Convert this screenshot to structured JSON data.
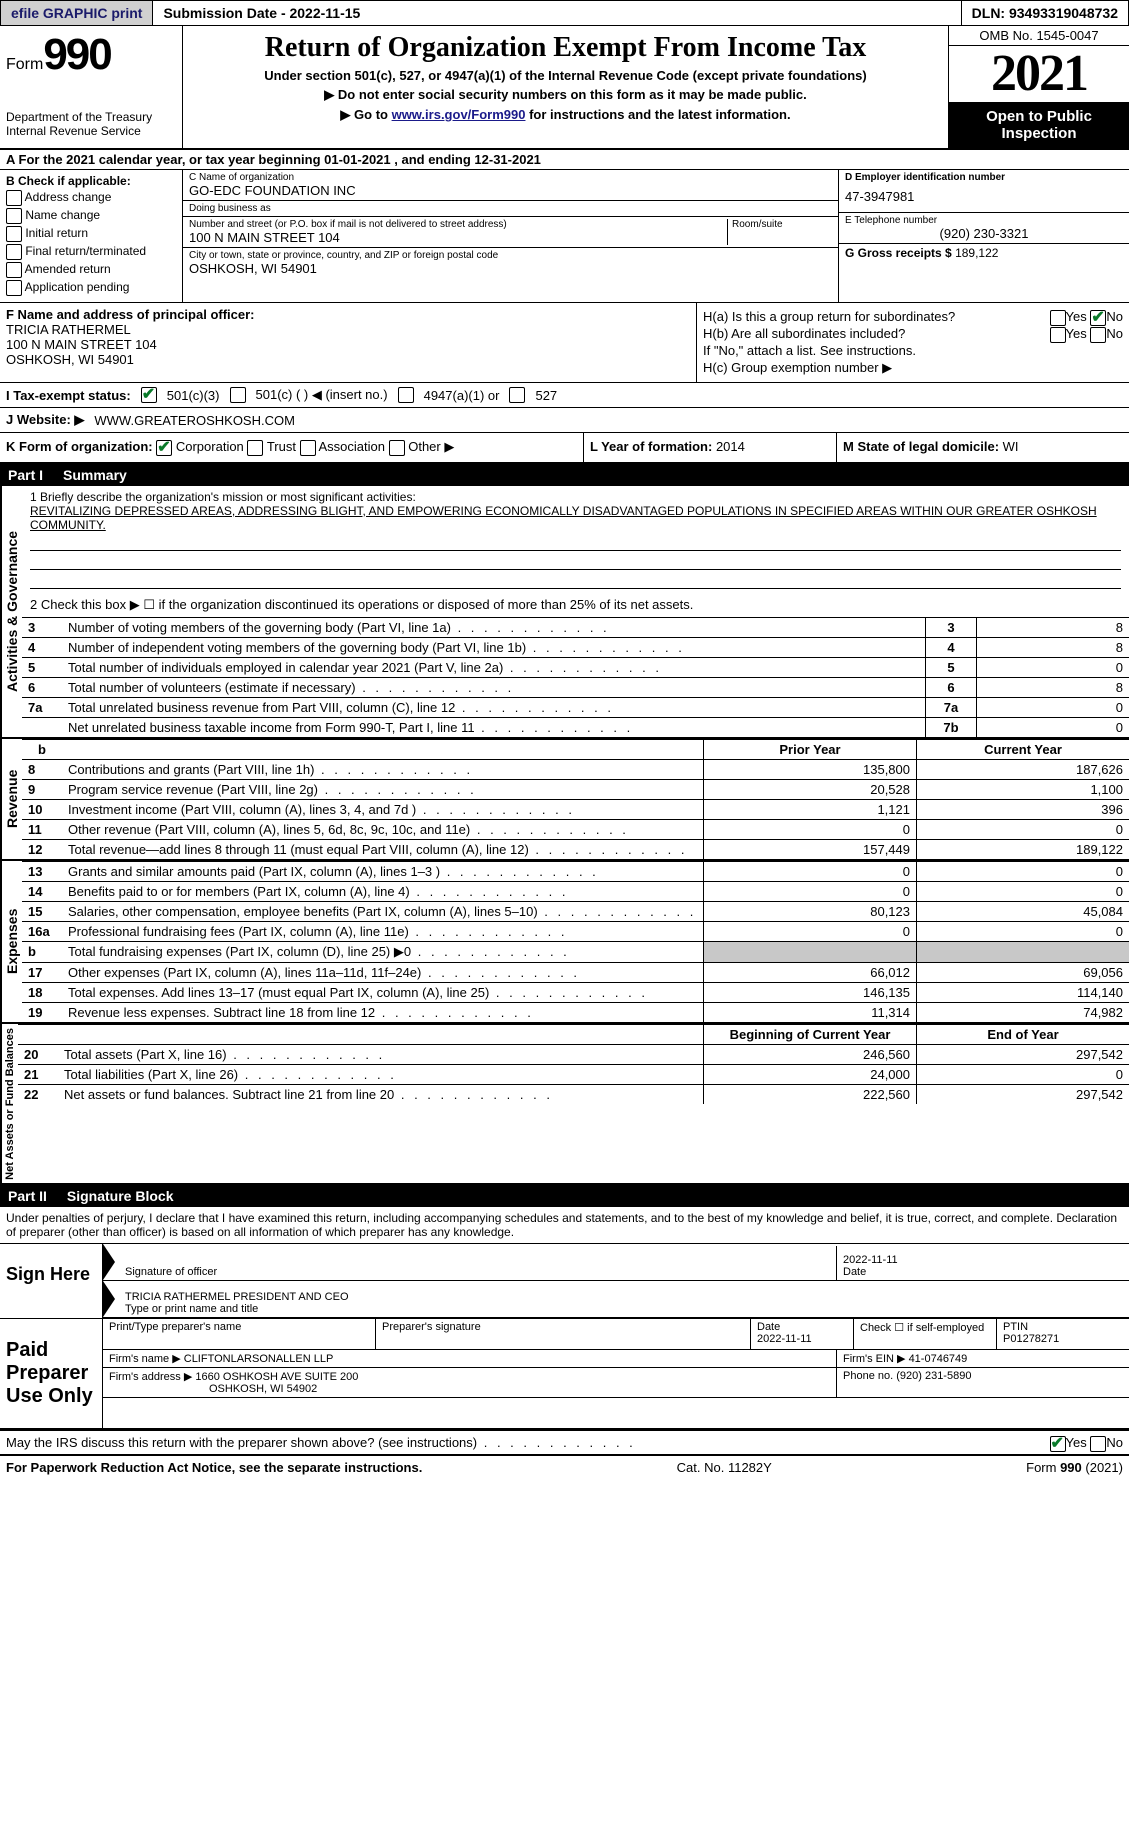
{
  "topbar": {
    "efile": "efile GRAPHIC print",
    "submission_label": "Submission Date - 2022-11-15",
    "dln": "DLN: 93493319048732"
  },
  "header": {
    "form_label": "Form",
    "form_number": "990",
    "dept": "Department of the Treasury Internal Revenue Service",
    "title": "Return of Organization Exempt From Income Tax",
    "subtitle": "Under section 501(c), 527, or 4947(a)(1) of the Internal Revenue Code (except private foundations)",
    "note1": "Do not enter social security numbers on this form as it may be made public.",
    "note2_pre": "Go to ",
    "note2_link": "www.irs.gov/Form990",
    "note2_post": " for instructions and the latest information.",
    "omb": "OMB No. 1545-0047",
    "year": "2021",
    "inspection": "Open to Public Inspection"
  },
  "row_a": "A For the 2021 calendar year, or tax year beginning 01-01-2021   , and ending 12-31-2021",
  "section_b": {
    "heading": "B Check if applicable:",
    "options": [
      "Address change",
      "Name change",
      "Initial return",
      "Final return/terminated",
      "Amended return",
      "Application pending"
    ],
    "c_label": "C Name of organization",
    "c_value": "GO-EDC FOUNDATION INC",
    "dba_label": "Doing business as",
    "dba_value": "",
    "addr_label": "Number and street (or P.O. box if mail is not delivered to street address)",
    "room_label": "Room/suite",
    "addr_value": "100 N MAIN STREET 104",
    "city_label": "City or town, state or province, country, and ZIP or foreign postal code",
    "city_value": "OSHKOSH, WI  54901",
    "d_label": "D Employer identification number",
    "d_value": "47-3947981",
    "e_label": "E Telephone number",
    "e_value": "(920) 230-3321",
    "g_label": "G Gross receipts $",
    "g_value": "189,122"
  },
  "section_f": {
    "label": "F Name and address of principal officer:",
    "name": "TRICIA RATHERMEL",
    "addr1": "100 N MAIN STREET 104",
    "addr2": "OSHKOSH, WI  54901"
  },
  "section_h": {
    "ha": "H(a) Is this a group return for subordinates?",
    "ha_yes": "Yes",
    "ha_no": "No",
    "hb": "H(b) Are all subordinates included?",
    "hb_note": "If \"No,\" attach a list. See instructions.",
    "hc": "H(c) Group exemption number ▶"
  },
  "row_i": {
    "label": "I  Tax-exempt status:",
    "opt1": "501(c)(3)",
    "opt2": "501(c) (  ) ◀ (insert no.)",
    "opt3": "4947(a)(1) or",
    "opt4": "527"
  },
  "row_j": {
    "label": "J  Website: ▶",
    "value": "WWW.GREATEROSHKOSH.COM"
  },
  "row_k": {
    "label": "K Form of organization:",
    "corp": "Corporation",
    "trust": "Trust",
    "assoc": "Association",
    "other": "Other ▶",
    "l_label": "L Year of formation:",
    "l_value": "2014",
    "m_label": "M State of legal domicile:",
    "m_value": "WI"
  },
  "part1": {
    "header_num": "Part I",
    "header_title": "Summary",
    "vtabs": [
      "Activities & Governance",
      "Revenue",
      "Expenses",
      "Net Assets or Fund Balances"
    ],
    "line1_label": "1  Briefly describe the organization's mission or most significant activities:",
    "line1_value": "REVITALIZING DEPRESSED AREAS, ADDRESSING BLIGHT, AND EMPOWERING ECONOMICALLY DISADVANTAGED POPULATIONS IN SPECIFIED AREAS WITHIN OUR GREATER OSHKOSH COMMUNITY.",
    "line2": "2  Check this box ▶ ☐ if the organization discontinued its operations or disposed of more than 25% of its net assets.",
    "rows_gov": [
      {
        "n": "3",
        "desc": "Number of voting members of the governing body (Part VI, line 1a)",
        "box": "3",
        "val": "8"
      },
      {
        "n": "4",
        "desc": "Number of independent voting members of the governing body (Part VI, line 1b)",
        "box": "4",
        "val": "8"
      },
      {
        "n": "5",
        "desc": "Total number of individuals employed in calendar year 2021 (Part V, line 2a)",
        "box": "5",
        "val": "0"
      },
      {
        "n": "6",
        "desc": "Total number of volunteers (estimate if necessary)",
        "box": "6",
        "val": "8"
      },
      {
        "n": "7a",
        "desc": "Total unrelated business revenue from Part VIII, column (C), line 12",
        "box": "7a",
        "val": "0"
      },
      {
        "n": "",
        "desc": "Net unrelated business taxable income from Form 990-T, Part I, line 11",
        "box": "7b",
        "val": "0"
      }
    ],
    "col_prior": "Prior Year",
    "col_current": "Current Year",
    "rows_rev": [
      {
        "n": "8",
        "desc": "Contributions and grants (Part VIII, line 1h)",
        "prior": "135,800",
        "curr": "187,626"
      },
      {
        "n": "9",
        "desc": "Program service revenue (Part VIII, line 2g)",
        "prior": "20,528",
        "curr": "1,100"
      },
      {
        "n": "10",
        "desc": "Investment income (Part VIII, column (A), lines 3, 4, and 7d )",
        "prior": "1,121",
        "curr": "396"
      },
      {
        "n": "11",
        "desc": "Other revenue (Part VIII, column (A), lines 5, 6d, 8c, 9c, 10c, and 11e)",
        "prior": "0",
        "curr": "0"
      },
      {
        "n": "12",
        "desc": "Total revenue—add lines 8 through 11 (must equal Part VIII, column (A), line 12)",
        "prior": "157,449",
        "curr": "189,122"
      }
    ],
    "rows_exp": [
      {
        "n": "13",
        "desc": "Grants and similar amounts paid (Part IX, column (A), lines 1–3 )",
        "prior": "0",
        "curr": "0"
      },
      {
        "n": "14",
        "desc": "Benefits paid to or for members (Part IX, column (A), line 4)",
        "prior": "0",
        "curr": "0"
      },
      {
        "n": "15",
        "desc": "Salaries, other compensation, employee benefits (Part IX, column (A), lines 5–10)",
        "prior": "80,123",
        "curr": "45,084"
      },
      {
        "n": "16a",
        "desc": "Professional fundraising fees (Part IX, column (A), line 11e)",
        "prior": "0",
        "curr": "0"
      },
      {
        "n": "b",
        "desc": "Total fundraising expenses (Part IX, column (D), line 25) ▶0",
        "prior": "",
        "curr": "",
        "grey": true
      },
      {
        "n": "17",
        "desc": "Other expenses (Part IX, column (A), lines 11a–11d, 11f–24e)",
        "prior": "66,012",
        "curr": "69,056"
      },
      {
        "n": "18",
        "desc": "Total expenses. Add lines 13–17 (must equal Part IX, column (A), line 25)",
        "prior": "146,135",
        "curr": "114,140"
      },
      {
        "n": "19",
        "desc": "Revenue less expenses. Subtract line 18 from line 12",
        "prior": "11,314",
        "curr": "74,982"
      }
    ],
    "col_begin": "Beginning of Current Year",
    "col_end": "End of Year",
    "rows_net": [
      {
        "n": "20",
        "desc": "Total assets (Part X, line 16)",
        "prior": "246,560",
        "curr": "297,542"
      },
      {
        "n": "21",
        "desc": "Total liabilities (Part X, line 26)",
        "prior": "24,000",
        "curr": "0"
      },
      {
        "n": "22",
        "desc": "Net assets or fund balances. Subtract line 21 from line 20",
        "prior": "222,560",
        "curr": "297,542"
      }
    ]
  },
  "part2": {
    "header_num": "Part II",
    "header_title": "Signature Block",
    "penalties": "Under penalties of perjury, I declare that I have examined this return, including accompanying schedules and statements, and to the best of my knowledge and belief, it is true, correct, and complete. Declaration of preparer (other than officer) is based on all information of which preparer has any knowledge.",
    "sign_here": "Sign Here",
    "sig_officer_label": "Signature of officer",
    "sig_date": "2022-11-11",
    "sig_date_label": "Date",
    "sig_name": "TRICIA RATHERMEL  PRESIDENT AND CEO",
    "sig_name_label": "Type or print name and title",
    "paid": "Paid Preparer Use Only",
    "prep_name_label": "Print/Type preparer's name",
    "prep_sig_label": "Preparer's signature",
    "prep_date_label": "Date",
    "prep_date": "2022-11-11",
    "prep_self_label": "Check ☐ if self-employed",
    "ptin_label": "PTIN",
    "ptin": "P01278271",
    "firm_name_label": "Firm's name    ▶",
    "firm_name": "CLIFTONLARSONALLEN LLP",
    "firm_ein_label": "Firm's EIN ▶",
    "firm_ein": "41-0746749",
    "firm_addr_label": "Firm's address ▶",
    "firm_addr1": "1660 OSHKOSH AVE SUITE 200",
    "firm_addr2": "OSHKOSH, WI  54902",
    "firm_phone_label": "Phone no.",
    "firm_phone": "(920) 231-5890",
    "may_irs": "May the IRS discuss this return with the preparer shown above? (see instructions)",
    "yes": "Yes",
    "no": "No"
  },
  "footer": {
    "left": "For Paperwork Reduction Act Notice, see the separate instructions.",
    "center": "Cat. No. 11282Y",
    "right": "Form 990 (2021)"
  }
}
